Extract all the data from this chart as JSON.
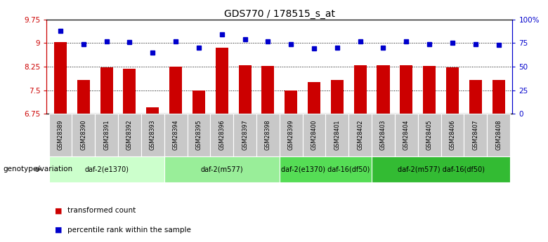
{
  "title": "GDS770 / 178515_s_at",
  "samples": [
    "GSM28389",
    "GSM28390",
    "GSM28391",
    "GSM28392",
    "GSM28393",
    "GSM28394",
    "GSM28395",
    "GSM28396",
    "GSM28397",
    "GSM28398",
    "GSM28399",
    "GSM28400",
    "GSM28401",
    "GSM28402",
    "GSM28403",
    "GSM28404",
    "GSM28405",
    "GSM28406",
    "GSM28407",
    "GSM28408"
  ],
  "red_values": [
    9.02,
    7.82,
    8.22,
    8.18,
    6.95,
    8.25,
    7.48,
    8.85,
    8.3,
    8.28,
    7.5,
    7.75,
    7.82,
    8.3,
    8.3,
    8.3,
    8.28,
    8.22,
    7.82,
    7.82
  ],
  "blue_pct": [
    88,
    74,
    77,
    76,
    65,
    77,
    70,
    84,
    79,
    77,
    74,
    69,
    70,
    77,
    70,
    77,
    74,
    75,
    74,
    73
  ],
  "ymin": 6.75,
  "ymax": 9.75,
  "yticks_left": [
    6.75,
    7.5,
    8.25,
    9.0,
    9.75
  ],
  "ytick_labels_left": [
    "6.75",
    "7.5",
    "8.25",
    "9",
    "9.75"
  ],
  "yticks_right": [
    0,
    25,
    50,
    75,
    100
  ],
  "ytick_labels_right": [
    "0",
    "25",
    "50",
    "75",
    "100%"
  ],
  "bar_color": "#cc0000",
  "dot_color": "#0000cc",
  "groups": [
    {
      "label": "daf-2(e1370)",
      "start": 0,
      "end": 5,
      "color": "#ccffcc"
    },
    {
      "label": "daf-2(m577)",
      "start": 5,
      "end": 10,
      "color": "#99ee99"
    },
    {
      "label": "daf-2(e1370) daf-16(df50)",
      "start": 10,
      "end": 14,
      "color": "#55dd55"
    },
    {
      "label": "daf-2(m577) daf-16(df50)",
      "start": 14,
      "end": 20,
      "color": "#33bb33"
    }
  ],
  "genotype_label": "genotype/variation",
  "legend_red": "transformed count",
  "legend_blue": "percentile rank within the sample",
  "left_axis_color": "#cc0000",
  "right_axis_color": "#0000cc",
  "sample_bg": "#c8c8c8"
}
